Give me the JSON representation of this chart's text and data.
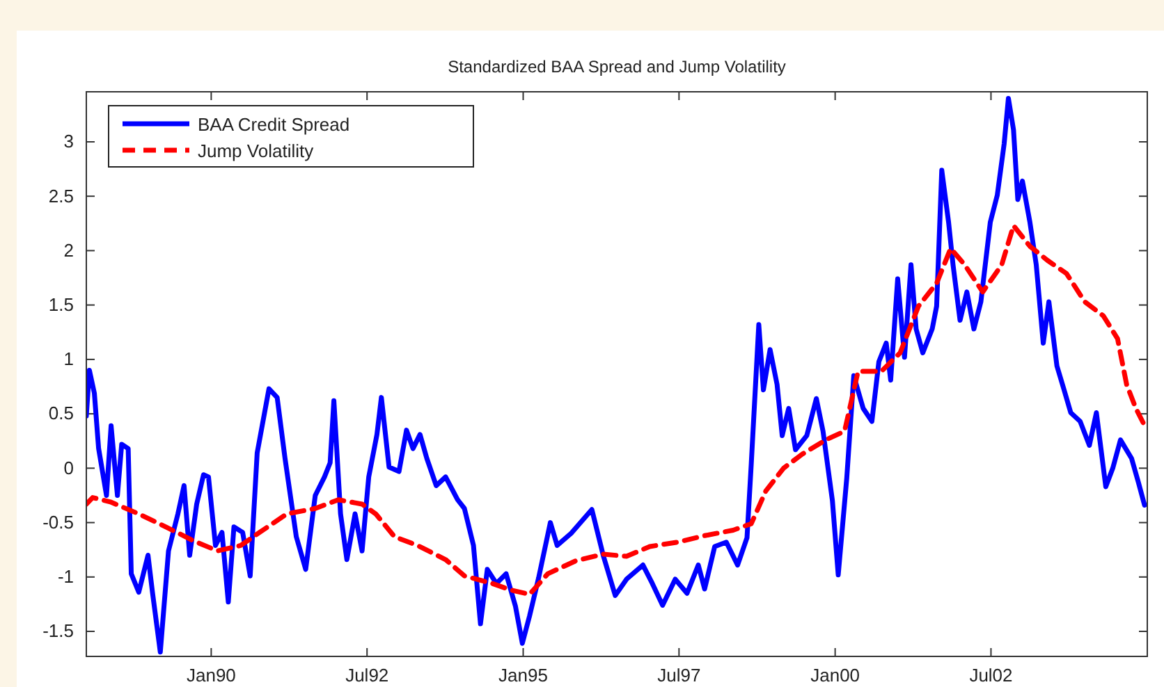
{
  "chart_data": {
    "type": "line",
    "title": "Standardized BAA Spread and Jump Volatility",
    "xlim": [
      "1988-01-01",
      "2005-01-01"
    ],
    "ylim": [
      -1.73,
      3.46
    ],
    "xticks": [
      {
        "value": "1990-01-01",
        "label": "Jan90"
      },
      {
        "value": "1992-07-01",
        "label": "Jul92"
      },
      {
        "value": "1995-01-01",
        "label": "Jan95"
      },
      {
        "value": "1997-07-01",
        "label": "Jul97"
      },
      {
        "value": "2000-01-01",
        "label": "Jan00"
      },
      {
        "value": "2002-07-01",
        "label": "Jul02"
      }
    ],
    "yticks": [
      -1.5,
      -1,
      -0.5,
      0,
      0.5,
      1,
      1.5,
      2,
      2.5,
      3
    ],
    "grid": false,
    "legend": "top left",
    "marker": "none",
    "series": [
      {
        "name": "BAA Credit Spread",
        "color": "#0000ff",
        "line_style": "solid",
        "x": [
          "1988-01-01",
          "1988-01-19",
          "1988-02-17",
          "1988-03-13",
          "1988-04-28",
          "1988-05-25",
          "1988-07-01",
          "1988-07-26",
          "1988-09-02",
          "1988-09-20",
          "1988-11-03",
          "1988-12-27",
          "1989-01-22",
          "1989-03-09",
          "1989-04-26",
          "1989-06-20",
          "1989-07-26",
          "1989-08-28",
          "1989-10-08",
          "1989-11-17",
          "1989-12-16",
          "1990-01-26",
          "1990-03-05",
          "1990-04-11",
          "1990-05-14",
          "1990-07-04",
          "1990-08-17",
          "1990-09-27",
          "1990-12-05",
          "1991-01-22",
          "1991-03-09",
          "1991-05-14",
          "1991-07-08",
          "1991-09-02",
          "1991-10-26",
          "1991-11-28",
          "1991-12-20",
          "1992-01-28",
          "1992-03-05",
          "1992-04-22",
          "1992-06-02",
          "1992-07-11",
          "1992-08-28",
          "1992-09-23",
          "1992-11-07",
          "1993-01-04",
          "1993-02-17",
          "1993-03-27",
          "1993-05-07",
          "1993-06-16",
          "1993-08-10",
          "1993-10-04",
          "1993-12-13",
          "1994-01-22",
          "1994-03-16",
          "1994-04-26",
          "1994-06-05",
          "1994-07-28",
          "1994-09-23",
          "1994-11-17",
          "1994-12-27",
          "1995-02-07",
          "1995-04-01",
          "1995-06-09",
          "1995-07-19",
          "1995-10-08",
          "1996-02-07",
          "1996-04-15",
          "1996-06-23",
          "1996-08-28",
          "1996-12-02",
          "1997-01-26",
          "1997-03-27",
          "1997-06-09",
          "1997-08-17",
          "1997-10-22",
          "1997-11-28",
          "1998-01-26",
          "1998-04-04",
          "1998-06-09",
          "1998-08-03",
          "1998-08-28",
          "1998-10-11",
          "1998-11-07",
          "1998-12-16",
          "1999-01-26",
          "1999-02-25",
          "1999-04-04",
          "1999-05-14",
          "1999-07-19",
          "1999-09-13",
          "1999-10-22",
          "1999-12-16",
          "2000-01-19",
          "2000-03-09",
          "2000-04-19",
          "2000-06-13",
          "2000-08-03",
          "2000-09-13",
          "2000-10-26",
          "2000-11-21",
          "2001-01-01",
          "2001-02-10",
          "2001-03-20",
          "2001-04-19",
          "2001-05-28",
          "2001-07-22",
          "2001-08-17",
          "2001-09-16",
          "2001-10-26",
          "2001-11-21",
          "2002-01-01",
          "2002-02-10",
          "2002-03-23",
          "2002-05-03",
          "2002-06-27",
          "2002-08-07",
          "2002-09-16",
          "2002-10-11",
          "2002-11-10",
          "2002-12-05",
          "2003-01-01",
          "2003-02-14",
          "2003-03-23",
          "2003-05-03",
          "2003-06-05",
          "2003-07-22",
          "2003-09-02",
          "2003-10-11",
          "2003-12-05",
          "2004-01-28",
          "2004-03-09",
          "2004-05-03",
          "2004-06-13",
          "2004-07-28",
          "2004-10-01",
          "2004-11-10",
          "2004-12-16"
        ],
        "values": [
          0.48,
          0.9,
          0.69,
          0.18,
          -0.25,
          0.39,
          -0.25,
          0.22,
          0.18,
          -0.97,
          -1.14,
          -0.8,
          -1.14,
          -1.69,
          -0.76,
          -0.42,
          -0.16,
          -0.8,
          -0.33,
          -0.06,
          -0.08,
          -0.71,
          -0.59,
          -1.23,
          -0.54,
          -0.59,
          -0.99,
          0.14,
          0.73,
          0.65,
          0.09,
          -0.63,
          -0.93,
          -0.25,
          -0.08,
          0.05,
          0.62,
          -0.42,
          -0.84,
          -0.42,
          -0.76,
          -0.08,
          0.31,
          0.65,
          0.01,
          -0.03,
          0.35,
          0.18,
          0.31,
          0.09,
          -0.16,
          -0.08,
          -0.29,
          -0.37,
          -0.71,
          -1.43,
          -0.93,
          -1.06,
          -0.97,
          -1.27,
          -1.61,
          -1.36,
          -1.01,
          -0.5,
          -0.71,
          -0.6,
          -0.38,
          -0.81,
          -1.17,
          -1.02,
          -0.89,
          -1.06,
          -1.26,
          -1.02,
          -1.15,
          -0.89,
          -1.11,
          -0.72,
          -0.68,
          -0.89,
          -0.64,
          0.04,
          1.32,
          0.72,
          1.09,
          0.77,
          0.3,
          0.55,
          0.17,
          0.3,
          0.64,
          0.34,
          -0.3,
          -0.98,
          -0.09,
          0.85,
          0.55,
          0.43,
          0.98,
          1.15,
          0.81,
          1.74,
          1.02,
          1.87,
          1.28,
          1.06,
          1.28,
          1.49,
          2.74,
          2.26,
          1.87,
          1.36,
          1.62,
          1.28,
          1.53,
          2.26,
          2.51,
          2.98,
          3.4,
          3.11,
          2.47,
          2.64,
          2.26,
          1.87,
          1.15,
          1.53,
          0.94,
          0.72,
          0.51,
          0.43,
          0.21,
          0.51,
          -0.17,
          0.0,
          0.26,
          0.09,
          -0.13,
          -0.34
        ]
      },
      {
        "name": "Jump Volatility",
        "color": "#ff0000",
        "line_style": "dashed",
        "x": [
          "1988-01-01",
          "1988-02-07",
          "1988-05-21",
          "1988-11-03",
          "1989-04-11",
          "1989-09-23",
          "1990-02-07",
          "1990-06-23",
          "1990-10-11",
          "1991-03-20",
          "1991-09-02",
          "1992-01-15",
          "1992-06-02",
          "1992-08-21",
          "1992-12-09",
          "1993-04-22",
          "1993-10-04",
          "1994-01-22",
          "1994-07-04",
          "1994-10-22",
          "1995-02-07",
          "1995-05-25",
          "1995-11-07",
          "1996-04-15",
          "1996-08-28",
          "1997-01-11",
          "1997-06-23",
          "1997-11-28",
          "1998-05-14",
          "1998-08-28",
          "1998-11-21",
          "1999-03-05",
          "1999-06-23",
          "1999-11-07",
          "2000-02-25",
          "2000-05-14",
          "2000-09-27",
          "2001-01-15",
          "2001-05-03",
          "2001-08-17",
          "2001-11-07",
          "2002-01-28",
          "2002-05-14",
          "2002-09-02",
          "2002-11-10",
          "2003-02-14",
          "2003-05-28",
          "2003-09-16",
          "2004-01-01",
          "2004-04-19",
          "2004-07-11",
          "2004-09-02",
          "2004-10-26",
          "2004-12-20"
        ],
        "values": [
          -0.33,
          -0.27,
          -0.31,
          -0.42,
          -0.54,
          -0.67,
          -0.76,
          -0.71,
          -0.59,
          -0.42,
          -0.37,
          -0.29,
          -0.33,
          -0.42,
          -0.63,
          -0.71,
          -0.84,
          -0.99,
          -1.06,
          -1.12,
          -1.16,
          -0.97,
          -0.85,
          -0.79,
          -0.81,
          -0.72,
          -0.68,
          -0.62,
          -0.57,
          -0.51,
          -0.21,
          0.0,
          0.13,
          0.26,
          0.34,
          0.89,
          0.89,
          1.06,
          1.49,
          1.7,
          2.02,
          1.87,
          1.62,
          1.87,
          2.23,
          2.04,
          1.91,
          1.79,
          1.53,
          1.4,
          1.19,
          0.77,
          0.55,
          0.38
        ]
      }
    ]
  }
}
